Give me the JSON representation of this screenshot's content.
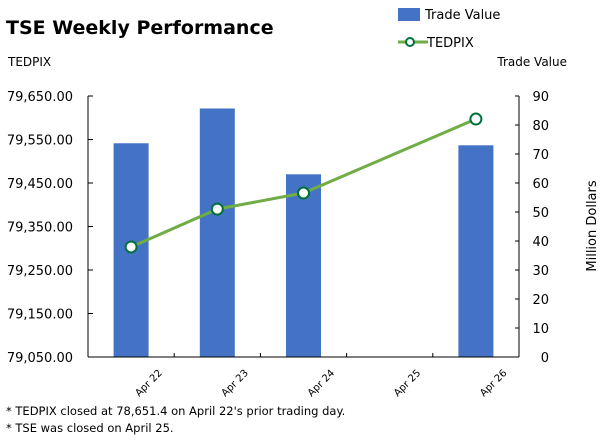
{
  "chart_data": {
    "type": "bar+line",
    "title": "TSE Weekly Performance",
    "categories": [
      "Apr 22",
      "Apr 23",
      "Apr 24",
      "Apr 25",
      "Apr 26"
    ],
    "series": [
      {
        "name": "Trade Value",
        "type": "bar",
        "axis": "right",
        "values": [
          73.7,
          85.7,
          63.0,
          null,
          73.0
        ],
        "color": "#4472C4"
      },
      {
        "name": "TEDPIX",
        "type": "line",
        "axis": "left",
        "values": [
          79303,
          79390,
          79427,
          null,
          79597
        ],
        "color": "#70AD47",
        "marker_edge": "#00703C"
      }
    ],
    "left_axis": {
      "label": "TEDPIX",
      "ylim": [
        79050,
        79650
      ],
      "ticks": [
        "79,050.00",
        "79,150.00",
        "79,250.00",
        "79,350.00",
        "79,450.00",
        "79,550.00",
        "79,650.00"
      ]
    },
    "right_axis": {
      "label": "Trade Value",
      "title": "Million Dollars",
      "ylim": [
        0,
        90
      ],
      "ticks": [
        "0",
        "10",
        "20",
        "30",
        "40",
        "50",
        "60",
        "70",
        "80",
        "90"
      ]
    },
    "grid": false,
    "legend_placement": "top-right",
    "notes": [
      "* TEDPIX closed at 78,651.4 on April 22's prior trading day.",
      "* TSE was closed on April 25."
    ]
  }
}
